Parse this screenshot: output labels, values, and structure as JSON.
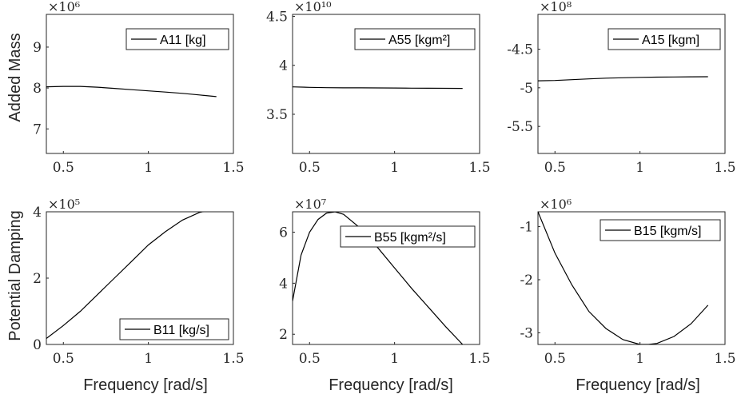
{
  "figure": {
    "row_labels": [
      "Added Mass",
      "Potential Damping"
    ],
    "xlabel": "Frequency [rad/s]"
  },
  "chart_data": [
    {
      "type": "line",
      "id": "A11",
      "series": [
        {
          "name": "A11 [kg]",
          "x": [
            0.4,
            0.5,
            0.6,
            0.7,
            0.8,
            0.9,
            1.0,
            1.1,
            1.2,
            1.3,
            1.4
          ],
          "y": [
            8.03,
            8.04,
            8.04,
            8.02,
            7.99,
            7.96,
            7.93,
            7.9,
            7.87,
            7.83,
            7.79
          ]
        }
      ],
      "xlim": [
        0.4,
        1.5
      ],
      "ylim": [
        6.4,
        9.8
      ],
      "xticks": [
        0.5,
        1,
        1.5
      ],
      "xtick_labels": [
        "0.5",
        "1",
        "1.5"
      ],
      "yticks": [
        7,
        8,
        9
      ],
      "ytick_labels": [
        "7",
        "8",
        "9"
      ],
      "y_exponent": "×10⁶",
      "legend_position": "top-right"
    },
    {
      "type": "line",
      "id": "A55",
      "series": [
        {
          "name": "A55 [kgm²]",
          "x": [
            0.4,
            0.5,
            0.6,
            0.7,
            0.8,
            0.9,
            1.0,
            1.1,
            1.2,
            1.3,
            1.4
          ],
          "y": [
            3.78,
            3.775,
            3.772,
            3.77,
            3.77,
            3.769,
            3.768,
            3.767,
            3.766,
            3.765,
            3.764
          ]
        }
      ],
      "xlim": [
        0.4,
        1.5
      ],
      "ylim": [
        3.1,
        4.52
      ],
      "xticks": [
        0.5,
        1,
        1.5
      ],
      "xtick_labels": [
        "0.5",
        "1",
        "1.5"
      ],
      "yticks": [
        3.5,
        4,
        4.5
      ],
      "ytick_labels": [
        "3.5",
        "4",
        "4.5"
      ],
      "y_exponent": "×10¹⁰",
      "legend_position": "top-right"
    },
    {
      "type": "line",
      "id": "A15",
      "series": [
        {
          "name": "A15 [kgm]",
          "x": [
            0.4,
            0.5,
            0.6,
            0.7,
            0.8,
            0.9,
            1.0,
            1.1,
            1.2,
            1.3,
            1.4
          ],
          "y": [
            -4.91,
            -4.905,
            -4.895,
            -4.885,
            -4.875,
            -4.87,
            -4.865,
            -4.862,
            -4.86,
            -4.858,
            -4.857
          ]
        }
      ],
      "xlim": [
        0.4,
        1.5
      ],
      "ylim": [
        -5.85,
        -4.05
      ],
      "xticks": [
        0.5,
        1,
        1.5
      ],
      "xtick_labels": [
        "0.5",
        "1",
        "1.5"
      ],
      "yticks": [
        -5.5,
        -5,
        -4.5
      ],
      "ytick_labels": [
        "-5.5",
        "-5",
        "-4.5"
      ],
      "y_exponent": "×10⁸",
      "legend_position": "top-right"
    },
    {
      "type": "line",
      "id": "B11",
      "series": [
        {
          "name": "B11 [kg/s]",
          "x": [
            0.4,
            0.5,
            0.6,
            0.7,
            0.8,
            0.9,
            1.0,
            1.1,
            1.2,
            1.3,
            1.4
          ],
          "y": [
            0.18,
            0.57,
            1.0,
            1.5,
            2.0,
            2.5,
            3.0,
            3.4,
            3.75,
            3.98,
            4.1
          ]
        }
      ],
      "xlim": [
        0.4,
        1.5
      ],
      "ylim": [
        0,
        4
      ],
      "xticks": [
        0.5,
        1,
        1.5
      ],
      "xtick_labels": [
        "0.5",
        "1",
        "1.5"
      ],
      "yticks": [
        0,
        2,
        4
      ],
      "ytick_labels": [
        "0",
        "2",
        "4"
      ],
      "y_exponent": "×10⁵",
      "legend_position": "bottom-right"
    },
    {
      "type": "line",
      "id": "B55",
      "series": [
        {
          "name": "B55 [kgm²/s]",
          "x": [
            0.4,
            0.45,
            0.5,
            0.55,
            0.6,
            0.65,
            0.7,
            0.8,
            0.9,
            1.0,
            1.1,
            1.2,
            1.3,
            1.4
          ],
          "y": [
            3.3,
            5.1,
            6.0,
            6.5,
            6.75,
            6.8,
            6.7,
            6.15,
            5.4,
            4.6,
            3.8,
            3.05,
            2.3,
            1.6
          ]
        }
      ],
      "xlim": [
        0.4,
        1.5
      ],
      "ylim": [
        1.6,
        6.8
      ],
      "xticks": [
        0.5,
        1,
        1.5
      ],
      "xtick_labels": [
        "0.5",
        "1",
        "1.5"
      ],
      "yticks": [
        2,
        4,
        6
      ],
      "ytick_labels": [
        "2",
        "4",
        "6"
      ],
      "y_exponent": "×10⁷",
      "legend_position": "top-right"
    },
    {
      "type": "line",
      "id": "B15",
      "series": [
        {
          "name": "B15 [kgm/s]",
          "x": [
            0.4,
            0.5,
            0.6,
            0.7,
            0.8,
            0.9,
            1.0,
            1.05,
            1.1,
            1.2,
            1.3,
            1.4
          ],
          "y": [
            -0.72,
            -1.5,
            -2.1,
            -2.6,
            -2.92,
            -3.13,
            -3.22,
            -3.22,
            -3.2,
            -3.07,
            -2.83,
            -2.48
          ]
        }
      ],
      "xlim": [
        0.4,
        1.5
      ],
      "ylim": [
        -3.22,
        -0.72
      ],
      "xticks": [
        0.5,
        1,
        1.5
      ],
      "xtick_labels": [
        "0.5",
        "1",
        "1.5"
      ],
      "yticks": [
        -3,
        -2,
        -1
      ],
      "ytick_labels": [
        "-3",
        "-2",
        "-1"
      ],
      "y_exponent": "×10⁶",
      "legend_position": "top-right"
    }
  ]
}
